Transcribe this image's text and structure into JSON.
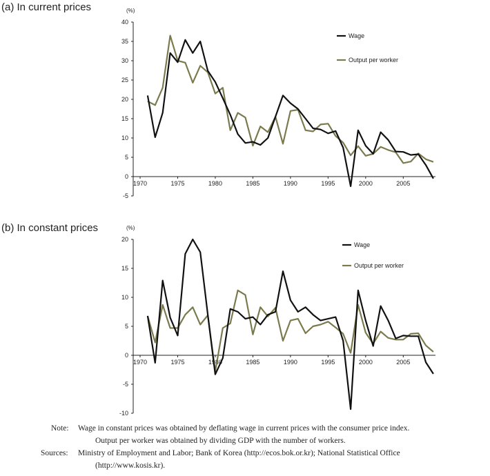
{
  "colors": {
    "wage": "#111111",
    "output": "#7b7a4e",
    "axis": "#222222"
  },
  "chart_data": [
    {
      "type": "line",
      "title": "(a) In current prices",
      "unit": "(%)",
      "ylim": [
        -5,
        40
      ],
      "yticks": [
        -5,
        0,
        5,
        10,
        15,
        20,
        25,
        30,
        35,
        40
      ],
      "xticks": [
        1970,
        1975,
        1980,
        1985,
        1990,
        1995,
        2000,
        2005
      ],
      "xlim": [
        1970,
        2008
      ],
      "legend": "top-right",
      "x": [
        1971,
        1972,
        1973,
        1974,
        1975,
        1976,
        1977,
        1978,
        1979,
        1980,
        1981,
        1982,
        1983,
        1984,
        1985,
        1986,
        1987,
        1988,
        1989,
        1990,
        1991,
        1992,
        1993,
        1994,
        1995,
        1996,
        1997,
        1998,
        1999,
        2000,
        2001,
        2002,
        2003,
        2004,
        2005,
        2006,
        2007,
        2008,
        2009
      ],
      "series": [
        {
          "name": "Wage",
          "color": "wage",
          "values": [
            21.0,
            10.2,
            16.5,
            32.0,
            29.6,
            35.4,
            32.0,
            35.0,
            27.4,
            24.5,
            20.3,
            16.0,
            11.0,
            8.7,
            9.0,
            8.2,
            10.0,
            15.5,
            21.0,
            19.0,
            17.5,
            15.0,
            12.5,
            12.2,
            11.2,
            11.8,
            7.5,
            -2.5,
            12.0,
            8.0,
            5.9,
            11.5,
            9.5,
            6.5,
            6.4,
            5.6,
            5.8,
            3.0,
            -0.5
          ]
        },
        {
          "name": "Output per worker",
          "color": "output",
          "values": [
            19.5,
            18.5,
            23.0,
            36.5,
            30.0,
            29.5,
            24.3,
            28.7,
            27.0,
            21.5,
            23.0,
            12.0,
            16.5,
            15.3,
            8.0,
            13.0,
            11.5,
            15.5,
            8.5,
            17.0,
            17.3,
            12.0,
            11.7,
            13.5,
            13.7,
            10.5,
            8.8,
            5.5,
            7.9,
            5.4,
            5.9,
            7.7,
            6.9,
            6.3,
            3.5,
            3.9,
            6.0,
            4.5,
            3.8
          ]
        }
      ]
    },
    {
      "type": "line",
      "title": "(b) In constant prices",
      "unit": "(%)",
      "ylim": [
        -10,
        20
      ],
      "yticks": [
        -10,
        -5,
        0,
        5,
        10,
        15,
        20
      ],
      "xticks": [
        1970,
        1975,
        1980,
        1985,
        1990,
        1995,
        2000,
        2005
      ],
      "xlim": [
        1970,
        2008
      ],
      "legend": "top-right",
      "x": [
        1971,
        1972,
        1973,
        1974,
        1975,
        1976,
        1977,
        1978,
        1979,
        1980,
        1981,
        1982,
        1983,
        1984,
        1985,
        1986,
        1987,
        1988,
        1989,
        1990,
        1991,
        1992,
        1993,
        1994,
        1995,
        1996,
        1997,
        1998,
        1999,
        2000,
        2001,
        2002,
        2003,
        2004,
        2005,
        2006,
        2007,
        2008,
        2009
      ],
      "series": [
        {
          "name": "Wage",
          "color": "wage",
          "values": [
            6.8,
            -1.3,
            12.9,
            6.5,
            3.4,
            17.5,
            20.0,
            17.8,
            7.0,
            -3.3,
            -0.5,
            8.0,
            7.5,
            6.3,
            6.6,
            5.3,
            7.0,
            7.5,
            14.5,
            9.5,
            7.5,
            8.3,
            7.0,
            6.0,
            6.3,
            6.6,
            2.5,
            -9.3,
            11.2,
            6.0,
            1.6,
            8.5,
            6.0,
            2.9,
            3.4,
            3.3,
            3.3,
            -1.2,
            -3.2
          ]
        },
        {
          "name": "Output per worker",
          "color": "output",
          "values": [
            6.8,
            2.2,
            8.7,
            4.7,
            4.7,
            7.0,
            8.3,
            5.3,
            6.9,
            -2.8,
            4.7,
            5.5,
            11.2,
            10.4,
            3.6,
            8.3,
            6.7,
            8.2,
            2.5,
            6.0,
            6.3,
            3.8,
            5.0,
            5.3,
            5.8,
            4.8,
            3.7,
            0.4,
            8.7,
            3.9,
            2.0,
            4.1,
            3.0,
            2.7,
            2.7,
            3.7,
            3.8,
            1.7,
            0.6
          ]
        }
      ]
    }
  ],
  "notes": {
    "note_label": "Note:",
    "note_line1": "Wage in constant prices was obtained by deflating wage in current prices with the consumer price index.",
    "note_line2": "Output per worker was obtained by dividing GDP with the number of workers.",
    "sources_label": "Sources:",
    "sources_line1": "Ministry of Employment and Labor; Bank of Korea (http://ecos.bok.or.kr); National Statistical Office",
    "sources_line2": "(http://www.kosis.kr)."
  }
}
